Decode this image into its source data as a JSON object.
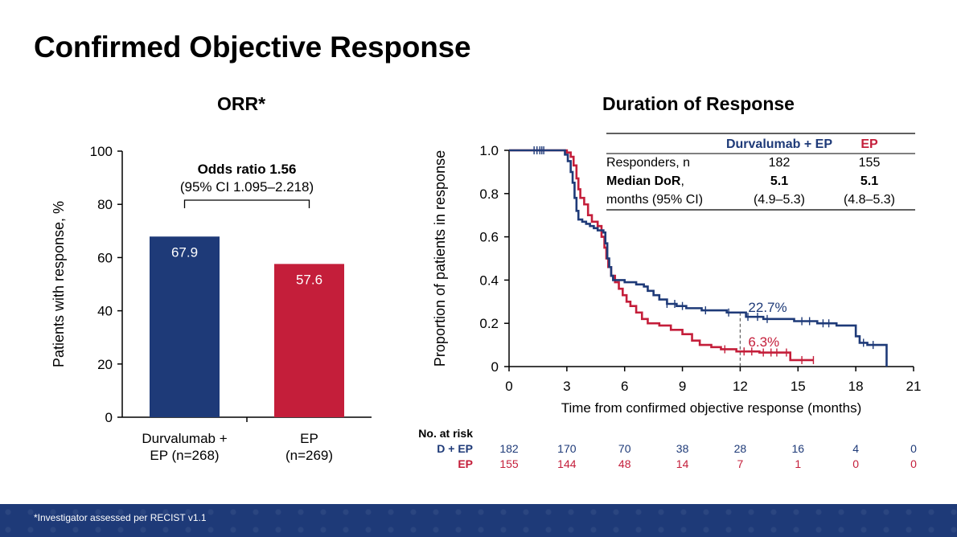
{
  "page_title": "Confirmed Objective Response",
  "footnote": "*Investigator assessed per RECIST v1.1",
  "colors": {
    "durva": "#1e3a78",
    "ep": "#c41e3a",
    "footer": "#1e3a78"
  },
  "chart_data": [
    {
      "type": "bar",
      "title": "ORR*",
      "ylabel": "Patients with response, %",
      "ylim": [
        0,
        100
      ],
      "yticks": [
        "0",
        "20",
        "40",
        "60",
        "80",
        "100"
      ],
      "categories": [
        [
          "Durvalumab +",
          "EP (n=268)"
        ],
        [
          "EP",
          "(n=269)"
        ]
      ],
      "values": [
        67.9,
        57.6
      ],
      "value_labels": [
        "67.9",
        "57.6"
      ],
      "annotation": {
        "line1": "Odds ratio 1.56",
        "line2": "(95% CI 1.095–2.218)"
      }
    },
    {
      "type": "line",
      "title": "Duration of Response",
      "xlabel": "Time from confirmed objective response (months)",
      "ylabel": "Proportion of patients in response",
      "xlim": [
        0,
        21
      ],
      "ylim": [
        0,
        1
      ],
      "xticks": [
        "0",
        "3",
        "6",
        "9",
        "12",
        "15",
        "18",
        "21"
      ],
      "yticks": [
        "0",
        "0.2",
        "0.4",
        "0.6",
        "0.8",
        "1.0"
      ],
      "series": [
        {
          "key": "durva",
          "points": [
            [
              0,
              1
            ],
            [
              2.6,
              1
            ],
            [
              2.9,
              0.98
            ],
            [
              3.05,
              0.95
            ],
            [
              3.2,
              0.9
            ],
            [
              3.3,
              0.85
            ],
            [
              3.4,
              0.78
            ],
            [
              3.5,
              0.72
            ],
            [
              3.6,
              0.68
            ],
            [
              3.8,
              0.67
            ],
            [
              4.0,
              0.66
            ],
            [
              4.2,
              0.65
            ],
            [
              4.4,
              0.64
            ],
            [
              4.6,
              0.63
            ],
            [
              4.9,
              0.62
            ],
            [
              5.0,
              0.57
            ],
            [
              5.1,
              0.5
            ],
            [
              5.2,
              0.46
            ],
            [
              5.3,
              0.42
            ],
            [
              5.4,
              0.4
            ],
            [
              6.0,
              0.39
            ],
            [
              6.6,
              0.38
            ],
            [
              7.0,
              0.37
            ],
            [
              7.2,
              0.35
            ],
            [
              7.5,
              0.33
            ],
            [
              7.8,
              0.31
            ],
            [
              8.2,
              0.29
            ],
            [
              8.7,
              0.28
            ],
            [
              9.2,
              0.27
            ],
            [
              10.0,
              0.26
            ],
            [
              11.3,
              0.25
            ],
            [
              12.3,
              0.23
            ],
            [
              13.2,
              0.22
            ],
            [
              14.8,
              0.21
            ],
            [
              16.0,
              0.2
            ],
            [
              17.0,
              0.19
            ],
            [
              18.0,
              0.14
            ],
            [
              18.2,
              0.11
            ],
            [
              18.6,
              0.1
            ],
            [
              19.6,
              0.1
            ],
            [
              19.6,
              0.0
            ]
          ],
          "censor": [
            1.3,
            1.45,
            1.6,
            1.7,
            1.8,
            8.2,
            8.6,
            9.0,
            10.2,
            11.4,
            12.4,
            12.9,
            13.4,
            15.2,
            15.6,
            16.3,
            16.6,
            18.4,
            18.9
          ]
        },
        {
          "key": "ep",
          "points": [
            [
              0,
              1
            ],
            [
              2.7,
              1
            ],
            [
              3.0,
              0.99
            ],
            [
              3.2,
              0.97
            ],
            [
              3.35,
              0.93
            ],
            [
              3.5,
              0.87
            ],
            [
              3.6,
              0.82
            ],
            [
              3.7,
              0.78
            ],
            [
              3.9,
              0.75
            ],
            [
              4.1,
              0.7
            ],
            [
              4.3,
              0.67
            ],
            [
              4.6,
              0.65
            ],
            [
              4.8,
              0.6
            ],
            [
              4.95,
              0.55
            ],
            [
              5.05,
              0.5
            ],
            [
              5.15,
              0.46
            ],
            [
              5.3,
              0.42
            ],
            [
              5.5,
              0.39
            ],
            [
              5.7,
              0.36
            ],
            [
              5.9,
              0.33
            ],
            [
              6.1,
              0.3
            ],
            [
              6.3,
              0.28
            ],
            [
              6.6,
              0.25
            ],
            [
              6.9,
              0.22
            ],
            [
              7.2,
              0.2
            ],
            [
              7.8,
              0.19
            ],
            [
              8.4,
              0.17
            ],
            [
              9.0,
              0.15
            ],
            [
              9.5,
              0.12
            ],
            [
              9.9,
              0.1
            ],
            [
              10.5,
              0.09
            ],
            [
              11.0,
              0.08
            ],
            [
              11.8,
              0.07
            ],
            [
              13.0,
              0.065
            ],
            [
              14.2,
              0.065
            ],
            [
              14.6,
              0.03
            ],
            [
              15.8,
              0.03
            ]
          ],
          "censor": [
            11.2,
            12.2,
            12.6,
            13.2,
            13.6,
            13.9,
            14.4,
            15.2,
            15.8
          ]
        }
      ],
      "marker_x": 12,
      "annotations": {
        "durva": "22.7%",
        "ep": "6.3%"
      },
      "summary_table": {
        "headers": [
          "",
          "Durvalumab + EP",
          "EP"
        ],
        "rows": [
          {
            "label": "Responders, n",
            "bold": false,
            "values": [
              "182",
              "155"
            ]
          },
          {
            "label": "Median DoR,",
            "label_bold": "Median DoR",
            "label_suffix": ",",
            "bold": true,
            "values": [
              "5.1",
              "5.1"
            ]
          },
          {
            "label": "months (95% CI)",
            "bold": false,
            "values": [
              "(4.9–5.3)",
              "(4.8–5.3)"
            ]
          }
        ]
      },
      "at_risk": {
        "title": "No. at risk",
        "rows": [
          {
            "label": "D + EP",
            "key": "durva",
            "values": [
              "182",
              "170",
              "70",
              "38",
              "28",
              "16",
              "4",
              "0"
            ]
          },
          {
            "label": "EP",
            "key": "ep",
            "values": [
              "155",
              "144",
              "48",
              "14",
              "7",
              "1",
              "0",
              "0"
            ]
          }
        ]
      }
    }
  ]
}
